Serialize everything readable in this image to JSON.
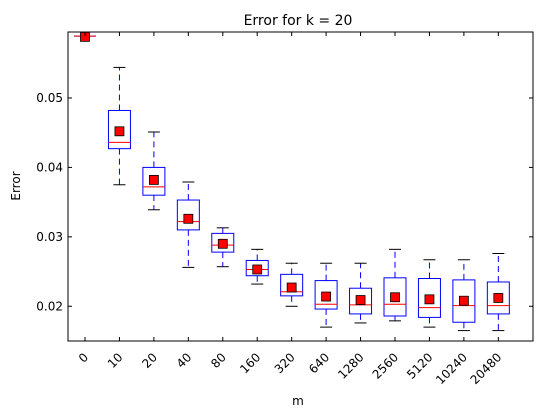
{
  "chart_data": {
    "type": "box",
    "title": "Error for k = 20",
    "xlabel": "m",
    "ylabel": "Error",
    "ylim": [
      0.015,
      0.0595
    ],
    "yticks": [
      0.02,
      0.03,
      0.04,
      0.05
    ],
    "ytick_labels": [
      "0.02",
      "0.03",
      "0.04",
      "0.05"
    ],
    "categories": [
      "0",
      "10",
      "20",
      "40",
      "80",
      "160",
      "320",
      "640",
      "1280",
      "2560",
      "5120",
      "10240",
      "20480"
    ],
    "boxes": [
      {
        "whisker_low": 0.0589,
        "q1": 0.0589,
        "median": 0.0589,
        "q3": 0.0589,
        "whisker_high": 0.0589,
        "mean": 0.0588
      },
      {
        "whisker_low": 0.0375,
        "q1": 0.0427,
        "median": 0.0436,
        "q3": 0.0482,
        "whisker_high": 0.0544,
        "mean": 0.0452
      },
      {
        "whisker_low": 0.0339,
        "q1": 0.036,
        "median": 0.0372,
        "q3": 0.04,
        "whisker_high": 0.0451,
        "mean": 0.0382
      },
      {
        "whisker_low": 0.0256,
        "q1": 0.031,
        "median": 0.0322,
        "q3": 0.0353,
        "whisker_high": 0.0379,
        "mean": 0.0326
      },
      {
        "whisker_low": 0.0257,
        "q1": 0.0278,
        "median": 0.0288,
        "q3": 0.0305,
        "whisker_high": 0.0313,
        "mean": 0.029
      },
      {
        "whisker_low": 0.0232,
        "q1": 0.0244,
        "median": 0.0253,
        "q3": 0.0266,
        "whisker_high": 0.0282,
        "mean": 0.0253
      },
      {
        "whisker_low": 0.02,
        "q1": 0.0215,
        "median": 0.0221,
        "q3": 0.0246,
        "whisker_high": 0.0262,
        "mean": 0.0227
      },
      {
        "whisker_low": 0.017,
        "q1": 0.0196,
        "median": 0.0203,
        "q3": 0.0237,
        "whisker_high": 0.0262,
        "mean": 0.0214
      },
      {
        "whisker_low": 0.0176,
        "q1": 0.0189,
        "median": 0.0202,
        "q3": 0.0226,
        "whisker_high": 0.0262,
        "mean": 0.0209
      },
      {
        "whisker_low": 0.0179,
        "q1": 0.0186,
        "median": 0.0203,
        "q3": 0.0241,
        "whisker_high": 0.0282,
        "mean": 0.0213
      },
      {
        "whisker_low": 0.017,
        "q1": 0.0184,
        "median": 0.0198,
        "q3": 0.024,
        "whisker_high": 0.0267,
        "mean": 0.021
      },
      {
        "whisker_low": 0.0165,
        "q1": 0.0177,
        "median": 0.0201,
        "q3": 0.0238,
        "whisker_high": 0.0267,
        "mean": 0.0208
      },
      {
        "whisker_low": 0.0165,
        "q1": 0.0189,
        "median": 0.0201,
        "q3": 0.0235,
        "whisker_high": 0.0276,
        "mean": 0.0212
      }
    ],
    "grid": false,
    "legend": "none",
    "colors": {
      "box": "#0000ff",
      "median": "#ff0000",
      "mean_marker": "#ff0000",
      "mean_marker_edge": "#000000",
      "axes": "#000000"
    }
  }
}
